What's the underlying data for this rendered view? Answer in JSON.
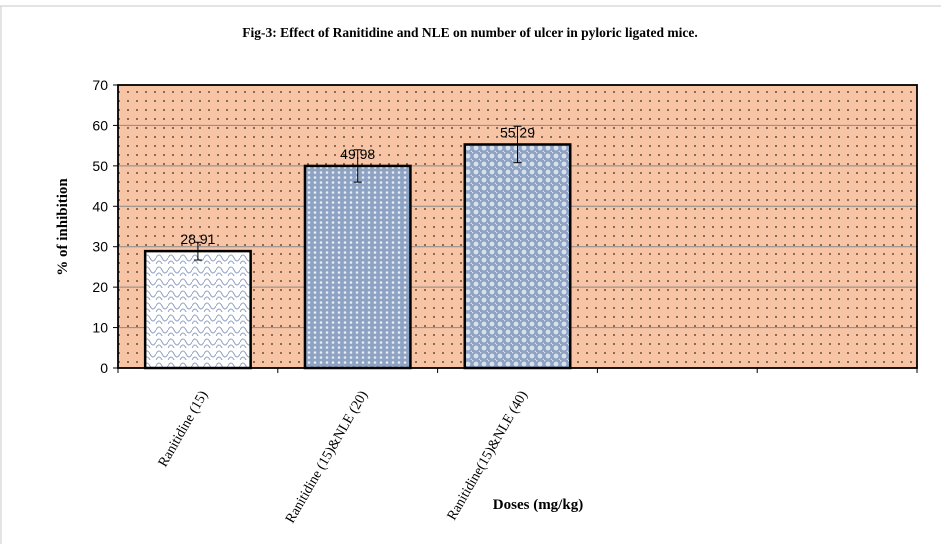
{
  "chart_data": {
    "type": "bar",
    "title": "Fig-3: Effect of Ranitidine and NLE on number of ulcer in pyloric ligated mice.",
    "xlabel": "Doses (mg/kg)",
    "ylabel": "% of inhibition",
    "categories": [
      "Ranitidine (15)",
      "Ranitidine (15)&NLE (20)",
      "Ranitidine(15)&NLE (40)",
      "",
      ""
    ],
    "values": [
      28.91,
      49.98,
      55.29,
      null,
      null
    ],
    "data_labels": [
      "28.91",
      "49.98",
      "55.29",
      "",
      ""
    ],
    "error_bars": [
      2.2,
      4.0,
      4.5,
      null,
      null
    ],
    "ylim": [
      0,
      70
    ],
    "yticks": [
      0,
      10,
      20,
      30,
      40,
      50,
      60,
      70
    ],
    "grid": true,
    "legend": "none",
    "plot_background": "#f7c4a5",
    "gridline_color": "#8a8a8a",
    "bar_fill_colors": [
      "#ffffff",
      "#8ea3c4",
      "#8ea3c4"
    ],
    "bar_pattern_colors": [
      "#8fa0c2",
      "#e8edf4",
      "#d8e0ec"
    ],
    "bar_outline_color": "#000000"
  }
}
